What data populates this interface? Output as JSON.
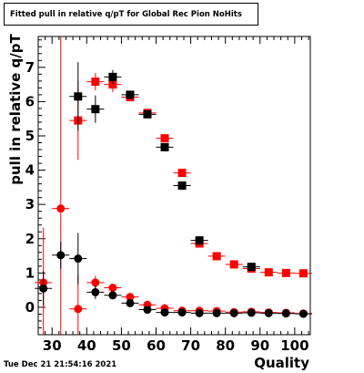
{
  "chart_data": {
    "type": "scatter",
    "title": "Fitted pull in relative q/pT for Global Rec Pion NoHits",
    "xlabel": "Quality",
    "ylabel": "pull in relative q/pT",
    "xlim": [
      26,
      104.5
    ],
    "ylim": [
      -0.8,
      7.9
    ],
    "xticks": [
      30,
      40,
      50,
      60,
      70,
      80,
      90,
      100
    ],
    "yticks": [
      0,
      1,
      2,
      3,
      4,
      5,
      6,
      7
    ],
    "grid": false,
    "series": [
      {
        "color": "#ff0000",
        "marker": "square",
        "points": [
          {
            "x": 37.5,
            "y": 5.45,
            "err": 1.15
          },
          {
            "x": 42.5,
            "y": 6.58,
            "err": 0.25
          },
          {
            "x": 47.5,
            "y": 6.5,
            "err": 0.22
          },
          {
            "x": 52.5,
            "y": 6.13,
            "err": 0.1
          },
          {
            "x": 57.5,
            "y": 5.67,
            "err": 0.06
          },
          {
            "x": 62.5,
            "y": 4.93,
            "err": 0.06
          },
          {
            "x": 67.5,
            "y": 3.92,
            "err": 0.05
          },
          {
            "x": 72.5,
            "y": 1.86,
            "err": 0.05
          },
          {
            "x": 77.5,
            "y": 1.49,
            "err": 0.04
          },
          {
            "x": 82.5,
            "y": 1.25,
            "err": 0.03
          },
          {
            "x": 87.5,
            "y": 1.13,
            "err": 0.03
          },
          {
            "x": 92.5,
            "y": 1.02,
            "err": 0.03
          },
          {
            "x": 97.5,
            "y": 1.0,
            "err": 0.02
          },
          {
            "x": 102.5,
            "y": 0.99,
            "err": 0.02
          }
        ]
      },
      {
        "color": "#000000",
        "marker": "square",
        "points": [
          {
            "x": 37.5,
            "y": 6.15,
            "err": 1.0
          },
          {
            "x": 42.5,
            "y": 5.78,
            "err": 0.4
          },
          {
            "x": 47.5,
            "y": 6.72,
            "err": 0.2
          },
          {
            "x": 52.5,
            "y": 6.2,
            "err": 0.1
          },
          {
            "x": 57.5,
            "y": 5.63,
            "err": 0.06
          },
          {
            "x": 62.5,
            "y": 4.67,
            "err": 0.06
          },
          {
            "x": 67.5,
            "y": 3.55,
            "err": 0.05
          },
          {
            "x": 72.5,
            "y": 1.95,
            "err": 0.05
          },
          {
            "x": 87.5,
            "y": 1.18,
            "err": 0.03
          }
        ]
      },
      {
        "color": "#ff0000",
        "marker": "circle",
        "points": [
          {
            "x": 27.5,
            "y": 0.72,
            "err": 1.6
          },
          {
            "x": 32.5,
            "y": 2.88,
            "err": 5.0
          },
          {
            "x": 37.5,
            "y": -0.05,
            "err": 1.0
          },
          {
            "x": 42.5,
            "y": 0.72,
            "err": 0.2
          },
          {
            "x": 47.5,
            "y": 0.57,
            "err": 0.12
          },
          {
            "x": 52.5,
            "y": 0.3,
            "err": 0.07
          },
          {
            "x": 57.5,
            "y": 0.07,
            "err": 0.05
          },
          {
            "x": 62.5,
            "y": -0.03,
            "err": 0.04
          },
          {
            "x": 67.5,
            "y": -0.1,
            "err": 0.03
          },
          {
            "x": 72.5,
            "y": -0.1,
            "err": 0.03
          },
          {
            "x": 77.5,
            "y": -0.11,
            "err": 0.03
          },
          {
            "x": 82.5,
            "y": -0.14,
            "err": 0.02
          },
          {
            "x": 87.5,
            "y": -0.13,
            "err": 0.02
          },
          {
            "x": 92.5,
            "y": -0.15,
            "err": 0.02
          },
          {
            "x": 97.5,
            "y": -0.16,
            "err": 0.02
          },
          {
            "x": 102.5,
            "y": -0.18,
            "err": 0.02
          }
        ]
      },
      {
        "color": "#000000",
        "marker": "circle",
        "points": [
          {
            "x": 27.5,
            "y": 0.55,
            "err": 0.5
          },
          {
            "x": 32.5,
            "y": 1.52,
            "err": 0.4
          },
          {
            "x": 37.5,
            "y": 1.42,
            "err": 0.75
          },
          {
            "x": 42.5,
            "y": 0.44,
            "err": 0.2
          },
          {
            "x": 47.5,
            "y": 0.35,
            "err": 0.12
          },
          {
            "x": 52.5,
            "y": 0.12,
            "err": 0.07
          },
          {
            "x": 57.5,
            "y": -0.07,
            "err": 0.05
          },
          {
            "x": 62.5,
            "y": -0.15,
            "err": 0.04
          },
          {
            "x": 67.5,
            "y": -0.15,
            "err": 0.03
          },
          {
            "x": 72.5,
            "y": -0.17,
            "err": 0.03
          },
          {
            "x": 77.5,
            "y": -0.17,
            "err": 0.03
          },
          {
            "x": 82.5,
            "y": -0.17,
            "err": 0.02
          },
          {
            "x": 87.5,
            "y": -0.16,
            "err": 0.02
          },
          {
            "x": 92.5,
            "y": -0.17,
            "err": 0.02
          },
          {
            "x": 97.5,
            "y": -0.18,
            "err": 0.02
          },
          {
            "x": 102.5,
            "y": -0.19,
            "err": 0.02
          }
        ]
      }
    ]
  },
  "footer": {
    "timestamp": "Tue Dec 21 21:54:16 2021"
  }
}
